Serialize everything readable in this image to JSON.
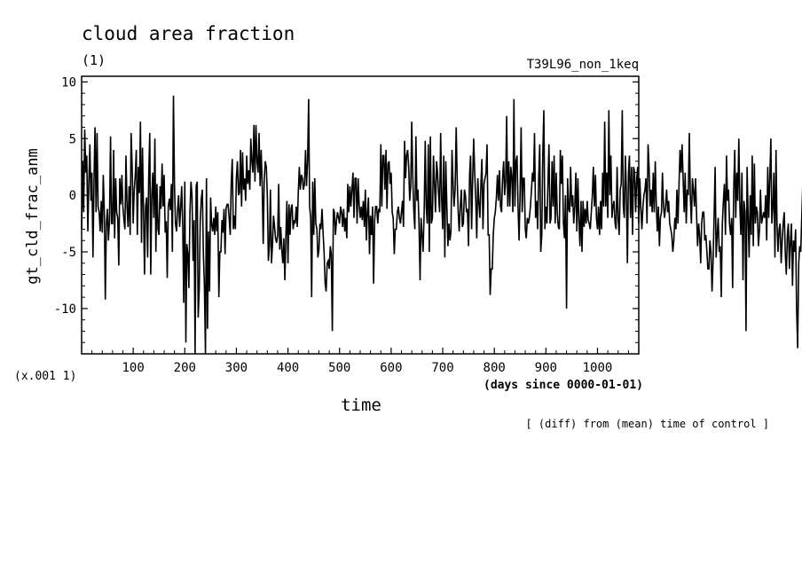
{
  "chart_data": {
    "type": "line",
    "title": "cloud area fraction",
    "subtitle": "(1)",
    "run_label": "T39L96_non_1keq",
    "xlabel": "time",
    "x_units": "(days since 0000-01-01)",
    "ylabel": "gt_cld_frac_anm",
    "y_scale_note": "(x.001 1)",
    "footnote": "[ (diff) from (mean) time of control ]",
    "xlim": [
      0,
      1080
    ],
    "ylim": [
      -14,
      10.5
    ],
    "x_ticks": [
      100,
      200,
      300,
      400,
      500,
      600,
      700,
      800,
      900,
      1000
    ],
    "x_tick_labels": [
      "100",
      "200",
      "300",
      "400",
      "500",
      "600",
      "700",
      "800",
      "900",
      "1000"
    ],
    "y_ticks": [
      -10,
      -5,
      0,
      5,
      10
    ],
    "y_tick_labels": [
      "-10",
      "-5",
      "0",
      "5",
      "10"
    ],
    "series": [
      {
        "x_step": 2,
        "x_start": 0,
        "values": [
          -3.0,
          3.0,
          -1.5,
          5.8,
          2.0,
          3.5,
          -3.2,
          1.0,
          4.5,
          -0.5,
          2.0,
          -5.5,
          1.5,
          6.0,
          -1.5,
          5.5,
          -1.0,
          -1.5,
          -3.2,
          -0.5,
          -3.3,
          1.8,
          -1.5,
          -9.2,
          -2.5,
          -1.2,
          -4.0,
          -2.2,
          5.2,
          -2.5,
          -2.5,
          4.0,
          -3.8,
          1.5,
          -1.5,
          -2.0,
          -6.2,
          1.5,
          -0.8,
          1.8,
          -1.0,
          -2.2,
          -3.0,
          3.5,
          -1.0,
          -2.8,
          0.8,
          -3.5,
          5.5,
          2.5,
          -2.5,
          0.5,
          1.8,
          4.0,
          -3.5,
          2.5,
          0.2,
          6.5,
          -4.2,
          4.2,
          -1.5,
          -7.0,
          -1.0,
          -0.2,
          -5.5,
          1.5,
          5.5,
          -7.0,
          0.0,
          2.0,
          -2.0,
          5.0,
          -5.0,
          1.0,
          -3.0,
          -3.5,
          0.8,
          -1.2,
          2.8,
          -1.0,
          1.8,
          -3.3,
          -2.3,
          -7.3,
          -1.0,
          -0.3,
          -1.3,
          1.0,
          -5.0,
          8.8,
          0.8,
          -2.5,
          -3.2,
          -1.2,
          0.0,
          -2.8,
          -1.2,
          0.8,
          -2.8,
          -9.5,
          1.2,
          -13.0,
          -4.3,
          -5.2,
          -8.2,
          -1.5,
          1.2,
          0.0,
          -5.8,
          -2.2,
          -14.0,
          0.8,
          1.2,
          -10.8,
          -8.2,
          -2.3,
          -0.3,
          0.5,
          -5.0,
          -8.0,
          -14.0,
          1.5,
          -11.8,
          -3.2,
          -8.5,
          -0.2,
          -2.5,
          -3.2,
          -2.0,
          -3.5,
          -1.0,
          -3.2,
          -1.5,
          -9.0,
          -5.0,
          -5.0,
          -2.2,
          -3.3,
          -1.2,
          -5.2,
          -1.2,
          -0.8,
          -0.8,
          -2.0,
          -3.5,
          1.0,
          3.2,
          -3.0,
          -1.8,
          -3.0,
          1.5,
          3.0,
          0.0,
          0.2,
          4.0,
          -1.0,
          3.8,
          0.5,
          1.5,
          -0.5,
          3.5,
          1.0,
          2.2,
          0.5,
          5.0,
          3.0,
          2.0,
          6.2,
          1.2,
          6.2,
          3.0,
          2.0,
          5.5,
          0.8,
          4.0,
          1.0,
          -4.3,
          1.3,
          3.0,
          2.5,
          0.0,
          -5.8,
          -4.5,
          0.5,
          -6.0,
          -4.5,
          -1.8,
          -2.8,
          -3.8,
          -4.2,
          -3.5,
          1.0,
          -4.8,
          -2.8,
          -4.8,
          -6.0,
          -3.8,
          -7.5,
          -3.5,
          -0.5,
          -6.0,
          -0.8,
          -3.5,
          -1.2,
          -0.8,
          -3.0,
          -2.2,
          -2.5,
          -1.0,
          -2.8,
          0.2,
          2.5,
          0.5,
          1.8,
          1.5,
          0.5,
          1.0,
          4.0,
          0.8,
          3.0,
          8.5,
          -1.0,
          -2.0,
          -9.0,
          1.2,
          -3.5,
          1.5,
          -2.5,
          -3.0,
          -5.5,
          -4.8,
          -2.5,
          -3.0,
          -1.2,
          -3.2,
          -5.0,
          -7.8,
          -8.5,
          -6.0,
          -5.8,
          -6.5,
          -4.5,
          -5.2,
          -12.0,
          -1.2,
          -1.5,
          -3.5,
          -2.2,
          -1.5,
          -2.0,
          -2.5,
          -1.0,
          -1.5,
          -2.8,
          -1.2,
          -3.2,
          -2.0,
          -3.8,
          1.0,
          -1.5,
          0.8,
          -1.0,
          0.5,
          2.0,
          -2.0,
          1.5,
          1.5,
          -2.5,
          1.5,
          -0.8,
          -2.0,
          -1.0,
          -2.2,
          -0.5,
          -2.8,
          0.5,
          -4.0,
          -1.5,
          -0.2,
          -5.2,
          -1.8,
          -3.5,
          -1.0,
          -7.8,
          -2.2,
          -1.0,
          -1.0,
          -2.5,
          -1.2,
          -1.5,
          4.5,
          -1.0,
          3.5,
          3.5,
          0.5,
          4.0,
          -1.2,
          2.8,
          3.0,
          1.0,
          2.0,
          -1.5,
          -2.0,
          -5.2,
          -3.0,
          -3.0,
          -1.5,
          -1.0,
          -2.0,
          -2.5,
          -1.5,
          -0.5,
          -2.8,
          4.8,
          1.5,
          3.5,
          4.0,
          2.5,
          -0.5,
          0.8,
          6.5,
          1.5,
          -1.5,
          -3.0,
          5.2,
          -0.5,
          0.5,
          -2.5,
          -7.5,
          -2.0,
          -3.5,
          -5.0,
          -1.5,
          4.8,
          -1.0,
          -2.5,
          4.5,
          -5.0,
          5.2,
          -2.5,
          -2.0,
          3.5,
          1.2,
          -1.5,
          3.0,
          2.0,
          0.0,
          -1.5,
          5.5,
          -0.5,
          -3.0,
          3.5,
          -5.5,
          3.0,
          -1.0,
          -4.5,
          -2.5,
          -4.0,
          -3.2,
          4.0,
          1.0,
          -1.0,
          0.5,
          6.0,
          1.5,
          -1.5,
          -3.2,
          -1.0,
          0.5,
          -2.8,
          -2.5,
          0.5,
          0.0,
          -1.5,
          -1.2,
          -4.5,
          1.8,
          3.5,
          -3.0,
          1.5,
          5.0,
          2.0,
          -0.5,
          -3.8,
          1.5,
          -0.5,
          -2.0,
          1.0,
          3.2,
          -3.0,
          1.0,
          1.5,
          2.0,
          4.5,
          -3.5,
          -3.5,
          -8.8,
          -6.5,
          -6.5,
          -3.5,
          -2.0,
          -1.5,
          -0.2,
          1.8,
          -0.5,
          2.2,
          -1.0,
          -1.5,
          1.5,
          3.0,
          0.0,
          1.2,
          7.0,
          -1.0,
          3.0,
          -1.0,
          2.5,
          1.5,
          -1.5,
          8.5,
          -1.0,
          3.0,
          3.5,
          -1.0,
          -4.0,
          0.5,
          6.0,
          -1.5,
          1.5,
          1.5,
          -3.0,
          -3.8,
          -2.0,
          -2.5,
          -2.0,
          -1.0,
          0.5,
          2.0,
          1.2,
          5.5,
          -2.0,
          -0.5,
          -3.0,
          1.5,
          4.5,
          -5.0,
          -3.5,
          3.5,
          7.5,
          -3.0,
          -1.0,
          -2.5,
          1.2,
          4.5,
          -2.5,
          -2.0,
          3.0,
          -1.0,
          3.5,
          -2.5,
          2.0,
          -1.5,
          -2.8,
          -3.0,
          4.0,
          1.0,
          3.5,
          -2.5,
          -3.8,
          0.0,
          -10.0,
          1.5,
          -1.2,
          -1.5,
          2.5,
          -1.0,
          0.0,
          -2.5,
          -1.0,
          2.0,
          -3.2,
          1.5,
          -2.0,
          -4.5,
          -0.5,
          -5.0,
          -0.5,
          -2.8,
          -1.2,
          -2.5,
          -0.5,
          -2.2,
          -2.5,
          -3.0,
          -1.5,
          0.0,
          2.5,
          -1.0,
          1.8,
          -2.0,
          -3.0,
          -1.0,
          -3.5,
          -0.5,
          -3.0,
          2.0,
          -1.0,
          6.5,
          -1.0,
          2.0,
          -2.0,
          7.5,
          0.0,
          3.5,
          -2.0,
          -1.0,
          -0.5,
          -2.5,
          -3.0,
          2.5,
          -2.0,
          -3.5,
          0.5,
          1.0,
          7.5,
          -1.0,
          -2.0,
          3.5,
          0.5,
          -6.0,
          2.0,
          3.5,
          -2.0,
          2.5,
          -3.5,
          2.5,
          2.0,
          -1.5,
          1.5,
          2.5,
          -2.5,
          1.5,
          -1.0,
          -3.0,
          -1.0,
          0.0,
          0.5,
          1.5,
          -2.5,
          4.5,
          2.5,
          -1.0,
          0.5,
          -1.5,
          2.0,
          -1.5,
          3.0,
          -1.0,
          -3.2,
          -1.0,
          -4.5,
          -2.0,
          -1.5,
          2.0,
          -1.0,
          -2.0,
          -1.0,
          0.5,
          -1.5,
          -0.5,
          -2.5,
          -3.0,
          -3.5,
          -5.0,
          -4.0,
          -2.0,
          -3.0,
          0.5,
          -2.5,
          1.0,
          4.0,
          2.0,
          4.5,
          1.5,
          -1.5,
          2.0,
          -2.5,
          0.5,
          0.0,
          5.5,
          0.0,
          -2.5,
          1.5,
          0.5,
          -1.0,
          1.5,
          -1.5,
          -4.5,
          -2.5,
          -3.5,
          -6.0,
          -2.5,
          -1.5,
          -1.5,
          -4.0,
          -3.5,
          -5.0,
          -6.5,
          -6.5,
          -4.0,
          -5.0,
          -8.5,
          -6.0,
          -2.0,
          2.5,
          -5.5,
          -3.5,
          -2.0,
          -5.0,
          -4.5,
          -9.0,
          -2.5,
          -0.5,
          1.0,
          -3.5,
          3.5,
          -0.5,
          0.5,
          -2.5,
          -3.5,
          -2.0,
          -8.2,
          0.5,
          4.0,
          -2.0,
          2.0,
          -0.5,
          5.0,
          -1.0,
          -3.5,
          2.0,
          -7.5,
          -0.5,
          -1.5,
          -12.0,
          2.5,
          -2.0,
          -5.5,
          0.0,
          -3.5,
          3.5,
          -4.5,
          2.8,
          -2.5,
          -1.0,
          -1.5,
          -4.5,
          -3.0,
          0.5,
          -2.5,
          -2.0,
          -1.5,
          -2.0,
          0.0,
          -4.0,
          2.5,
          -2.0,
          1.5,
          5.0,
          -2.5,
          -1.0,
          2.0,
          -5.5,
          4.0,
          -2.5,
          -5.0,
          -3.0,
          -2.5,
          -6.0,
          -4.0,
          -2.5,
          -1.5,
          -5.0,
          -7.0,
          -3.5,
          -2.5,
          -6.5,
          -4.0,
          -2.5,
          -8.0,
          -4.0,
          -5.0,
          -3.0,
          -10.0,
          -13.5,
          -6.0,
          -4.5,
          -5.0,
          -2.0,
          1.0
        ]
      }
    ]
  }
}
